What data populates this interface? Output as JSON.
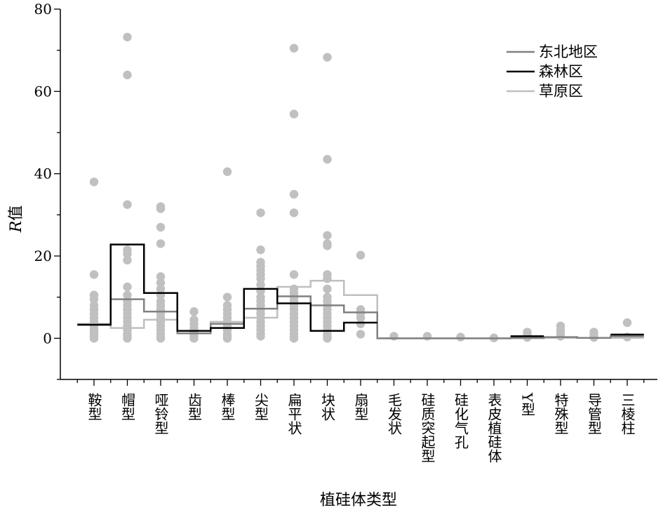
{
  "chart_data": {
    "type": "scatter",
    "xlabel": "植硅体类型",
    "ylabel_italic": "R",
    "ylabel_rest": "值",
    "ylim": [
      -10,
      80
    ],
    "yticks": [
      0,
      20,
      40,
      60,
      80
    ],
    "categories": [
      "鞍型",
      "帽型",
      "哑铃型",
      "齿型",
      "棒型",
      "尖型",
      "扁平状",
      "块状",
      "扇型",
      "毛发状",
      "硅质突起型",
      "硅化气孔",
      "表皮植硅体",
      "Y型",
      "特殊型",
      "导管型",
      "三棱柱"
    ],
    "points": [
      [
        38,
        15.5,
        10.5,
        9.5,
        8,
        7,
        6,
        5,
        4,
        3,
        2,
        1.5,
        1,
        0.5,
        0
      ],
      [
        73.2,
        64,
        32.5,
        21.5,
        20.5,
        19,
        12.5,
        10.5,
        9,
        8,
        7,
        6,
        5,
        4,
        3,
        2,
        1,
        0.5,
        0
      ],
      [
        32,
        31.5,
        27,
        23,
        15,
        13.5,
        12,
        10.5,
        9,
        8,
        7,
        6,
        5,
        4,
        3,
        2,
        1,
        0.5,
        0
      ],
      [
        6.5,
        4.5,
        3.5,
        2.5,
        2,
        1.5,
        1,
        0.5,
        0
      ],
      [
        40.5,
        10,
        8,
        7,
        6,
        5,
        4,
        3,
        2,
        1,
        0.5,
        0
      ],
      [
        30.5,
        21.5,
        18.5,
        17.5,
        16.5,
        15.5,
        14.5,
        13,
        11.5,
        10,
        9,
        8,
        7,
        6,
        5,
        4,
        3,
        2,
        1,
        0.5
      ],
      [
        70.5,
        54.5,
        35,
        30.5,
        15.5,
        12,
        11,
        10,
        9,
        8,
        7,
        6,
        5,
        4,
        3,
        2,
        1,
        0.5,
        0
      ],
      [
        68.3,
        43.5,
        25,
        23,
        22.5,
        15.5,
        14.5,
        12,
        10,
        9,
        8,
        7,
        6,
        5,
        4,
        3,
        2,
        1,
        0.5,
        0
      ],
      [
        20.2,
        7,
        6,
        5,
        3.5,
        1
      ],
      [
        0.5
      ],
      [
        0.5
      ],
      [
        0.3
      ],
      [
        0.1
      ],
      [
        1.5,
        0.8,
        0.2
      ],
      [
        3,
        2,
        1.2,
        0.5
      ],
      [
        1.5,
        0.8,
        0.2
      ],
      [
        3.8,
        0.3
      ]
    ],
    "series": [
      {
        "name": "东北地区",
        "color": "#808080",
        "values": [
          3.3,
          9.5,
          6.5,
          1.2,
          3.5,
          7.2,
          10.2,
          8,
          6.3,
          0,
          0,
          0,
          0,
          0.1,
          0.3,
          0.1,
          0.5
        ]
      },
      {
        "name": "森林区",
        "color": "#000000",
        "values": [
          3.3,
          22.8,
          11,
          1.8,
          2.5,
          12,
          8.5,
          1.8,
          3.8,
          null,
          null,
          null,
          null,
          0.5,
          null,
          null,
          0.9
        ]
      },
      {
        "name": "草原区",
        "color": "#bfbfbf",
        "values": [
          3.5,
          2.5,
          4.5,
          1.2,
          4,
          5,
          12.5,
          14,
          10.5,
          0,
          0,
          0,
          0,
          0,
          0.1,
          0.1,
          0.1
        ]
      }
    ],
    "point_color": "#c0c0c0",
    "legend_position": "top-right",
    "grid": false
  }
}
